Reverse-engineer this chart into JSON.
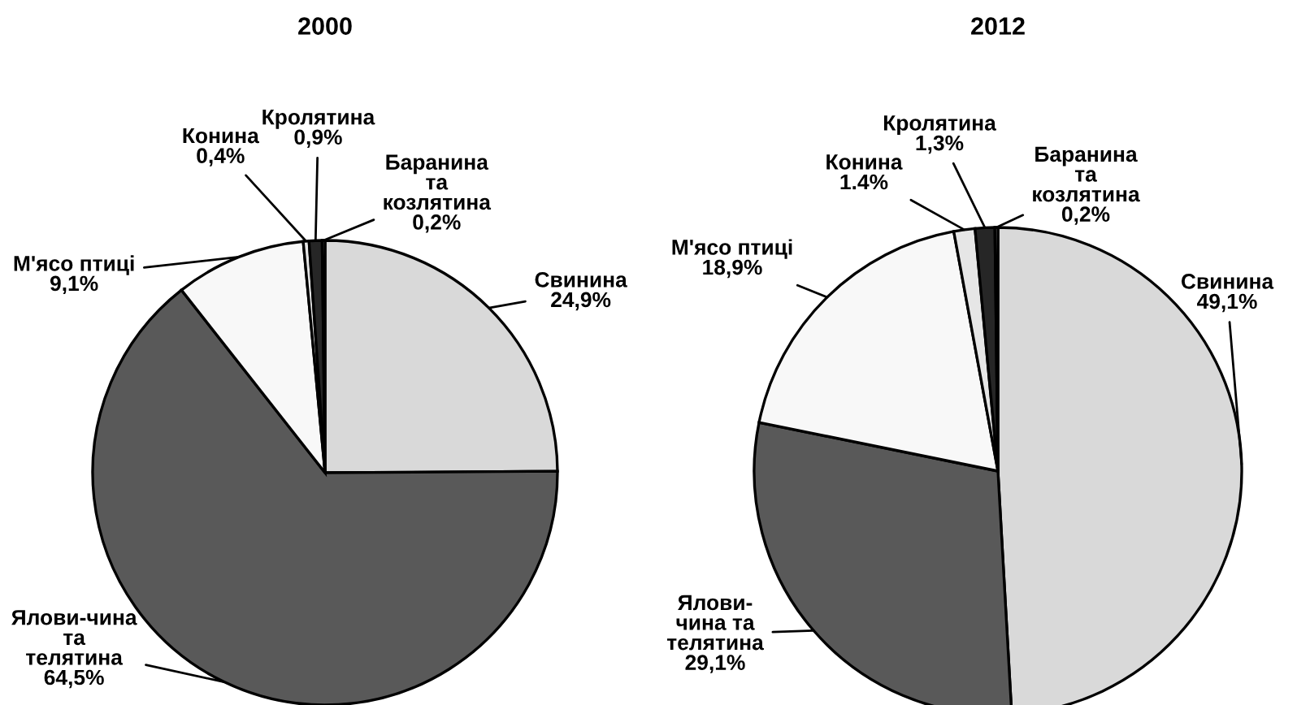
{
  "chart_data": [
    {
      "type": "pie",
      "title": "2000",
      "categories": [
        "Свинина",
        "Ялови-чина\nта\nтелятина",
        "М'ясо птиці",
        "Конина",
        "Кролятина",
        "Баранина\nта\nкозлятина"
      ],
      "values": [
        24.9,
        64.5,
        9.1,
        0.4,
        0.9,
        0.2
      ],
      "value_labels": [
        "24,9%",
        "64,5%",
        "9,1%",
        "0,4%",
        "0,9%",
        "0,2%"
      ],
      "colors": [
        "#d9d9d9",
        "#595959",
        "#f8f8f8",
        "#e6e6e6",
        "#262626",
        "#808080"
      ]
    },
    {
      "type": "pie",
      "title": "2012",
      "categories": [
        "Свинина",
        "Ялови-\nчина та\nтелятина",
        "М'ясо птиці",
        "Конина",
        "Кролятина",
        "Баранина\nта\nкозлятина"
      ],
      "values": [
        49.1,
        29.1,
        18.9,
        1.4,
        1.3,
        0.2
      ],
      "value_labels": [
        "49,1%",
        "29,1%",
        "18,9%",
        "1.4%",
        "1,3%",
        "0,2%"
      ],
      "colors": [
        "#d9d9d9",
        "#595959",
        "#f8f8f8",
        "#e6e6e6",
        "#262626",
        "#808080"
      ]
    }
  ]
}
